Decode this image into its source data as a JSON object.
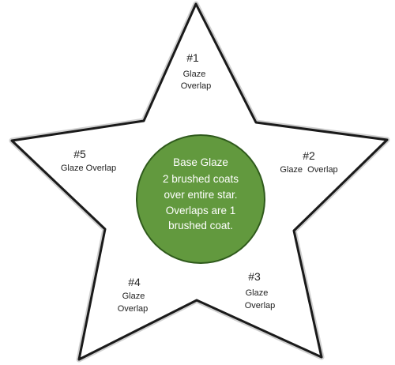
{
  "colors": {
    "star_fill": "#ffffff",
    "star_stroke": "#1a1a1a",
    "circle_fill": "#62993e",
    "circle_stroke": "#2f5a1c"
  },
  "center": {
    "title": "Base Glaze",
    "lines": [
      "2 brushed coats",
      "over entire star.",
      "Overlaps are 1",
      "brushed coat."
    ]
  },
  "points": [
    {
      "number": "#1",
      "label_lines": [
        "Glaze",
        "Overlap"
      ]
    },
    {
      "number": "#2",
      "label_lines": [
        "Glaze  Overlap"
      ]
    },
    {
      "number": "#3",
      "label_lines": [
        "Glaze",
        "Overlap"
      ]
    },
    {
      "number": "#4",
      "label_lines": [
        "Glaze",
        "Overlap"
      ]
    },
    {
      "number": "#5",
      "label_lines": [
        "Glaze Overlap"
      ]
    }
  ]
}
